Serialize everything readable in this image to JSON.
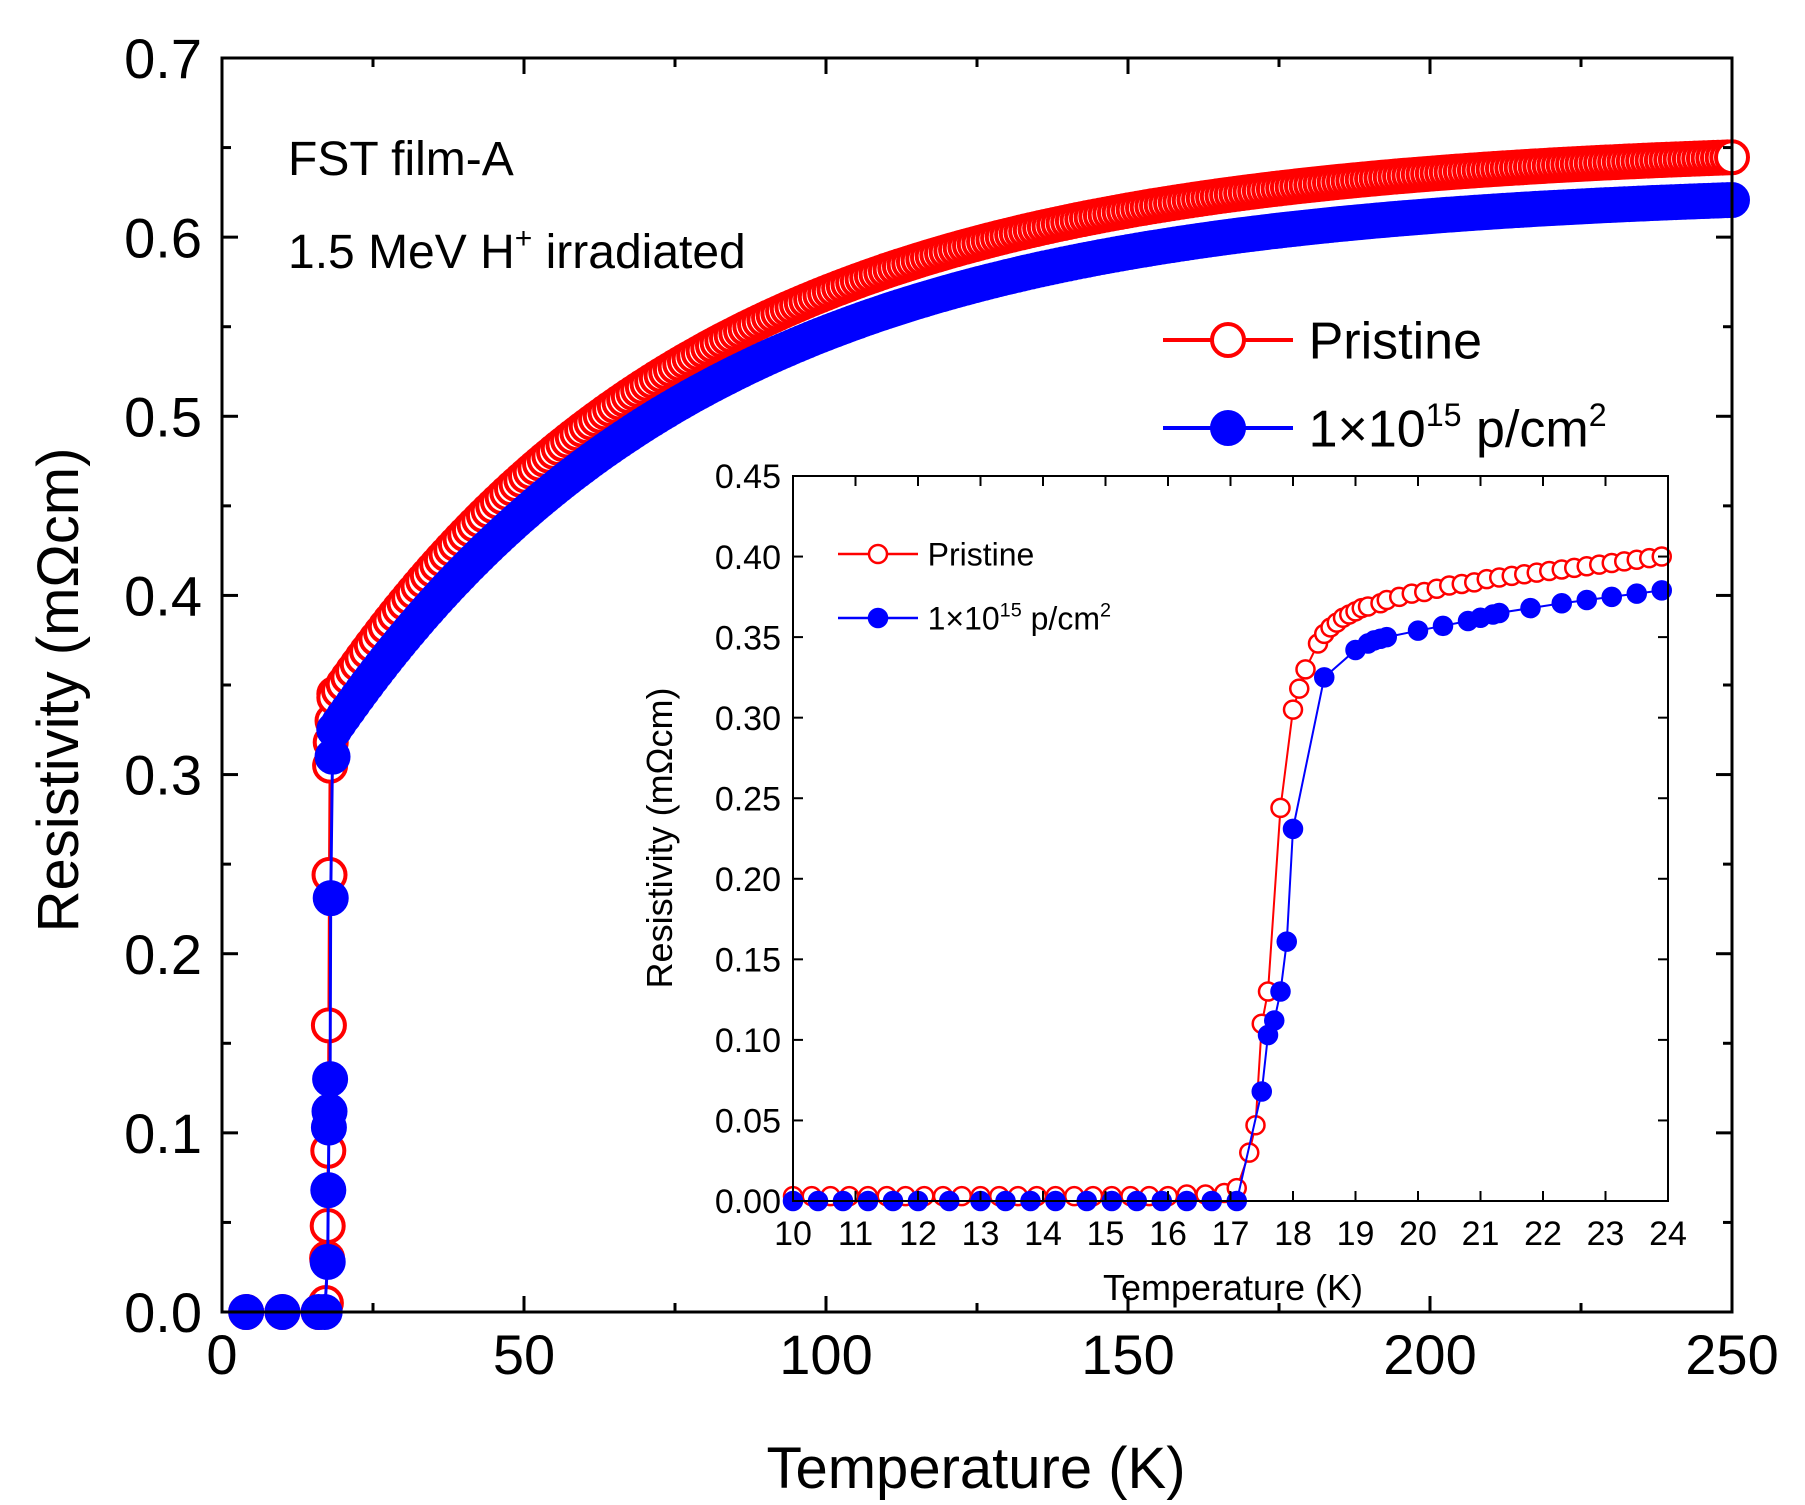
{
  "chart_data": [
    {
      "type": "scatter",
      "role": "main",
      "xlabel": "Temperature (K)",
      "ylabel": "Resistivity (mΩcm)",
      "xlim": [
        0,
        250
      ],
      "ylim": [
        0,
        0.7
      ],
      "xticks": [
        "0",
        "50",
        "100",
        "150",
        "200",
        "250"
      ],
      "yticks": [
        "0.0",
        "0.1",
        "0.2",
        "0.3",
        "0.4",
        "0.5",
        "0.6",
        "0.7"
      ],
      "annotations": [
        "FST film-A",
        "1.5 MeV H",
        "+",
        " irradiated"
      ],
      "legend": [
        {
          "name": "Pristine",
          "prefix": "Pristine",
          "sup": "",
          "suffix": "",
          "sup2": "",
          "color": "#ff0000",
          "marker": "open-circle"
        },
        {
          "name": "1×10^15 p/cm^2",
          "prefix": "1×10",
          "sup": "15",
          "suffix": " p/cm",
          "sup2": "2",
          "color": "#0000ff",
          "marker": "filled-circle"
        }
      ],
      "series": [
        {
          "name": "Pristine",
          "color": "#ff0000",
          "marker": "open-circle",
          "transition": {
            "x": [
              4,
              10,
              16,
              17,
              17.2,
              17.4,
              17.5,
              17.6,
              17.7,
              17.8,
              17.9,
              18.0,
              18.3,
              18.6
            ],
            "y": [
              0.0,
              0.0,
              0.0,
              0.002,
              0.005,
              0.03,
              0.048,
              0.09,
              0.16,
              0.244,
              0.305,
              0.318,
              0.33,
              0.345
            ]
          },
          "curve": {
            "x_start": 18.6,
            "x_end": 250,
            "points": 300,
            "formula": "y = 0.652 - 0.309*exp(-(x-18.6)/62)"
          }
        },
        {
          "name": "1×10^15 p/cm^2",
          "color": "#0000ff",
          "marker": "filled-circle",
          "transition": {
            "x": [
              4,
              10,
              16,
              17,
              17.5,
              17.6,
              17.7,
              17.8,
              17.9,
              18.0,
              18.3,
              18.6
            ],
            "y": [
              0.0,
              0.0,
              0.0,
              0.0,
              0.028,
              0.068,
              0.103,
              0.112,
              0.13,
              0.231,
              0.31,
              0.325
            ]
          },
          "curve": {
            "x_start": 18.6,
            "x_end": 250,
            "points": 300,
            "formula": "y = 0.628 - 0.303*exp(-(x-18.6)/62)"
          }
        }
      ]
    },
    {
      "type": "line",
      "role": "inset",
      "xlabel": "Temperature (K)",
      "ylabel": "Resistivity (mΩcm)",
      "xlim": [
        10,
        24
      ],
      "ylim": [
        0,
        0.45
      ],
      "xticks": [
        "10",
        "11",
        "12",
        "13",
        "14",
        "15",
        "16",
        "17",
        "18",
        "19",
        "20",
        "21",
        "22",
        "23",
        "24"
      ],
      "yticks": [
        "0.00",
        "0.05",
        "0.10",
        "0.15",
        "0.20",
        "0.25",
        "0.30",
        "0.35",
        "0.40",
        "0.45"
      ],
      "legend": [
        {
          "name": "Pristine",
          "prefix": "Pristine",
          "sup": "",
          "suffix": "",
          "sup2": "",
          "color": "#ff0000",
          "marker": "open-circle"
        },
        {
          "name": "1×10^15 p/cm^2",
          "prefix": "1×10",
          "sup": "15",
          "suffix": " p/cm",
          "sup2": "2",
          "color": "#0000ff",
          "marker": "filled-circle"
        }
      ],
      "series": [
        {
          "name": "Pristine",
          "color": "#ff0000",
          "marker": "open-circle",
          "x": [
            10.0,
            10.3,
            10.6,
            10.9,
            11.2,
            11.5,
            11.8,
            12.1,
            12.4,
            12.7,
            13.0,
            13.3,
            13.6,
            13.9,
            14.2,
            14.5,
            14.8,
            15.1,
            15.4,
            15.7,
            16.0,
            16.3,
            16.6,
            16.9,
            17.1,
            17.3,
            17.4,
            17.5,
            17.6,
            17.8,
            18.0,
            18.1,
            18.2,
            18.4,
            18.5,
            18.6,
            18.7,
            18.8,
            18.9,
            19.0,
            19.1,
            19.2,
            19.4,
            19.5,
            19.7,
            19.9,
            20.1,
            20.3,
            20.5,
            20.7,
            20.9,
            21.1,
            21.3,
            21.5,
            21.7,
            21.9,
            22.1,
            22.3,
            22.5,
            22.7,
            22.9,
            23.1,
            23.3,
            23.5,
            23.7,
            23.9
          ],
          "y": [
            0.003,
            0.003,
            0.003,
            0.003,
            0.003,
            0.003,
            0.003,
            0.003,
            0.003,
            0.003,
            0.003,
            0.003,
            0.003,
            0.003,
            0.003,
            0.003,
            0.003,
            0.003,
            0.003,
            0.003,
            0.003,
            0.004,
            0.004,
            0.005,
            0.008,
            0.03,
            0.047,
            0.11,
            0.13,
            0.244,
            0.305,
            0.318,
            0.33,
            0.346,
            0.352,
            0.356,
            0.359,
            0.362,
            0.364,
            0.366,
            0.368,
            0.369,
            0.371,
            0.373,
            0.375,
            0.377,
            0.378,
            0.38,
            0.382,
            0.383,
            0.384,
            0.386,
            0.387,
            0.388,
            0.389,
            0.39,
            0.391,
            0.392,
            0.393,
            0.394,
            0.395,
            0.396,
            0.397,
            0.398,
            0.399,
            0.4
          ]
        },
        {
          "name": "1×10^15 p/cm^2",
          "color": "#0000ff",
          "marker": "filled-circle",
          "x": [
            10.0,
            10.4,
            10.8,
            11.2,
            11.6,
            12.0,
            12.5,
            13.0,
            13.4,
            13.8,
            14.2,
            14.7,
            15.1,
            15.5,
            15.9,
            16.3,
            16.7,
            17.1,
            17.5,
            17.6,
            17.7,
            17.8,
            17.9,
            18.0,
            18.5,
            19.0,
            19.2,
            19.3,
            19.4,
            19.5,
            20.0,
            20.4,
            20.8,
            21.0,
            21.2,
            21.3,
            21.8,
            22.3,
            22.7,
            23.1,
            23.5,
            23.9
          ],
          "y": [
            0.0,
            0.0,
            0.0,
            0.0,
            0.0,
            0.0,
            0.0,
            0.0,
            0.0,
            0.0,
            0.0,
            0.0,
            0.0,
            0.0,
            0.0,
            0.0,
            0.0,
            0.0,
            0.068,
            0.103,
            0.112,
            0.13,
            0.161,
            0.231,
            0.325,
            0.342,
            0.346,
            0.348,
            0.349,
            0.35,
            0.354,
            0.357,
            0.36,
            0.362,
            0.364,
            0.365,
            0.368,
            0.371,
            0.373,
            0.375,
            0.377,
            0.379
          ]
        }
      ]
    }
  ]
}
